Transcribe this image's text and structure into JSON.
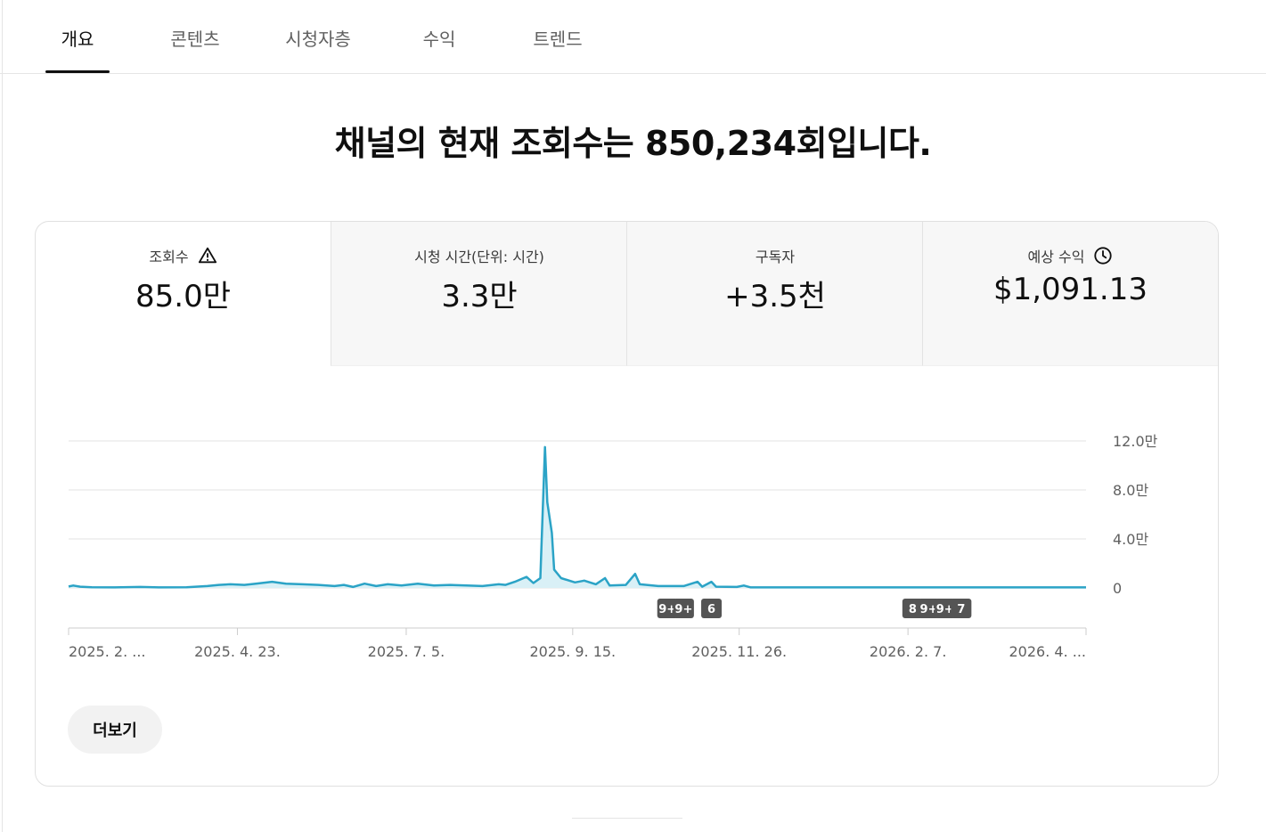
{
  "tabs": [
    {
      "label": "개요",
      "active": true
    },
    {
      "label": "콘텐츠",
      "active": false
    },
    {
      "label": "시청자층",
      "active": false
    },
    {
      "label": "수익",
      "active": false
    },
    {
      "label": "트렌드",
      "active": false
    }
  ],
  "headline": "채널의 현재 조회수는 850,234회입니다.",
  "metrics": [
    {
      "label": "조회수",
      "value": "85.0만",
      "icon": "warning-icon"
    },
    {
      "label": "시청 시간(단위: 시간)",
      "value": "3.3만",
      "icon": ""
    },
    {
      "label": "구독자",
      "value": "+3.5천",
      "icon": ""
    },
    {
      "label": "예상 수익",
      "value": "$1,091.13",
      "icon": "clock-icon"
    }
  ],
  "more_button": "더보기",
  "chart_data": {
    "type": "area",
    "series_color": "#2ba3c6",
    "y_ticks": [
      {
        "value": 0,
        "label": "0"
      },
      {
        "value": 40000,
        "label": "4.0만"
      },
      {
        "value": 80000,
        "label": "8.0만"
      },
      {
        "value": 120000,
        "label": "12.0만"
      }
    ],
    "ylim": [
      0,
      120000
    ],
    "x_start": "2025-02-09",
    "x_end": "2026-04-25",
    "x_tick_labels": [
      {
        "date": "2025-02-09",
        "label": "2025. 2. ..."
      },
      {
        "date": "2025-04-23",
        "label": "2025. 4. 23."
      },
      {
        "date": "2025-07-05",
        "label": "2025. 7. 5."
      },
      {
        "date": "2025-09-15",
        "label": "2025. 9. 15."
      },
      {
        "date": "2025-11-26",
        "label": "2025. 11. 26."
      },
      {
        "date": "2026-02-07",
        "label": "2026. 2. 7."
      },
      {
        "date": "2026-04-25",
        "label": "2026. 4. ..."
      }
    ],
    "points": [
      [
        "2025-02-09",
        1200
      ],
      [
        "2025-02-11",
        2000
      ],
      [
        "2025-02-14",
        1000
      ],
      [
        "2025-02-19",
        500
      ],
      [
        "2025-03-01",
        400
      ],
      [
        "2025-03-12",
        800
      ],
      [
        "2025-03-20",
        400
      ],
      [
        "2025-04-01",
        500
      ],
      [
        "2025-04-10",
        1500
      ],
      [
        "2025-04-15",
        2500
      ],
      [
        "2025-04-20",
        3000
      ],
      [
        "2025-04-26",
        2500
      ],
      [
        "2025-05-01",
        3500
      ],
      [
        "2025-05-08",
        5000
      ],
      [
        "2025-05-14",
        3500
      ],
      [
        "2025-05-21",
        3000
      ],
      [
        "2025-05-28",
        2500
      ],
      [
        "2025-06-04",
        1500
      ],
      [
        "2025-06-08",
        2500
      ],
      [
        "2025-06-12",
        800
      ],
      [
        "2025-06-17",
        3500
      ],
      [
        "2025-06-22",
        1500
      ],
      [
        "2025-06-27",
        3000
      ],
      [
        "2025-07-03",
        2000
      ],
      [
        "2025-07-10",
        3500
      ],
      [
        "2025-07-17",
        2000
      ],
      [
        "2025-07-24",
        2500
      ],
      [
        "2025-07-31",
        2000
      ],
      [
        "2025-08-07",
        1500
      ],
      [
        "2025-08-14",
        3000
      ],
      [
        "2025-08-17",
        2500
      ],
      [
        "2025-08-21",
        5000
      ],
      [
        "2025-08-26",
        9000
      ],
      [
        "2025-08-29",
        4000
      ],
      [
        "2025-09-01",
        8000
      ],
      [
        "2025-09-03",
        115000
      ],
      [
        "2025-09-04",
        70000
      ],
      [
        "2025-09-06",
        45000
      ],
      [
        "2025-09-07",
        15000
      ],
      [
        "2025-09-10",
        8000
      ],
      [
        "2025-09-16",
        4500
      ],
      [
        "2025-09-20",
        6000
      ],
      [
        "2025-09-25",
        3000
      ],
      [
        "2025-09-29",
        8000
      ],
      [
        "2025-10-01",
        2000
      ],
      [
        "2025-10-08",
        2500
      ],
      [
        "2025-10-12",
        11500
      ],
      [
        "2025-10-14",
        3000
      ],
      [
        "2025-10-22",
        1500
      ],
      [
        "2025-11-02",
        1500
      ],
      [
        "2025-11-08",
        5000
      ],
      [
        "2025-11-10",
        1000
      ],
      [
        "2025-11-14",
        5000
      ],
      [
        "2025-11-16",
        1000
      ],
      [
        "2025-11-25",
        800
      ],
      [
        "2025-11-28",
        2000
      ],
      [
        "2025-12-01",
        400
      ],
      [
        "2026-01-01",
        400
      ],
      [
        "2026-02-07",
        400
      ],
      [
        "2026-03-15",
        400
      ],
      [
        "2026-04-25",
        400
      ]
    ],
    "markers": [
      {
        "label": "9+",
        "date": "2025-10-26"
      },
      {
        "label": "9+",
        "date": "2025-11-02"
      },
      {
        "label": "6",
        "date": "2025-11-14"
      },
      {
        "label": "8",
        "date": "2026-02-09"
      },
      {
        "label": "9+",
        "date": "2026-02-16"
      },
      {
        "label": "9+",
        "date": "2026-02-23"
      },
      {
        "label": "7",
        "date": "2026-03-02"
      }
    ]
  }
}
